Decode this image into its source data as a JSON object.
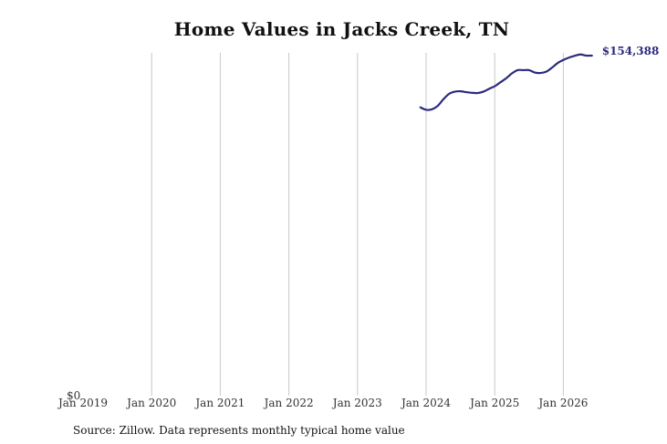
{
  "chart_data": {
    "type": "line",
    "title": "Home Values in Jacks Creek, TN",
    "xlabel": "",
    "ylabel": "",
    "x_ticks": [
      "Jan 2019",
      "Jan 2020",
      "Jan 2021",
      "Jan 2022",
      "Jan 2023",
      "Jan 2024",
      "Jan 2025",
      "Jan 2026"
    ],
    "y_ticks": [
      "$0"
    ],
    "xlim": [
      "2019-01",
      "2026-06"
    ],
    "ylim": [
      0,
      154388
    ],
    "grid": "vertical",
    "line_color": "#2b2a7e",
    "end_label": "$154,388",
    "series": [
      {
        "x": [
          "2023-12",
          "2024-01",
          "2024-02",
          "2024-03",
          "2024-04",
          "2024-05",
          "2024-06",
          "2024-07",
          "2024-08",
          "2024-09",
          "2024-10",
          "2024-11",
          "2024-12",
          "2025-01",
          "2025-02",
          "2025-03",
          "2025-04",
          "2025-05",
          "2025-06",
          "2025-07",
          "2025-08",
          "2025-09",
          "2025-10",
          "2025-11",
          "2025-12",
          "2026-01",
          "2026-02",
          "2026-03",
          "2026-04",
          "2026-05",
          "2026-06"
        ],
        "values": [
          130900,
          129800,
          130000,
          131500,
          134500,
          137000,
          138000,
          138200,
          137800,
          137500,
          137400,
          138000,
          139300,
          140500,
          142300,
          144100,
          146300,
          147800,
          147800,
          147800,
          146700,
          146500,
          147100,
          148900,
          151000,
          152400,
          153500,
          154300,
          154900,
          154400,
          154388
        ]
      }
    ]
  },
  "source": "Source: Zillow. Data represents monthly typical home value"
}
